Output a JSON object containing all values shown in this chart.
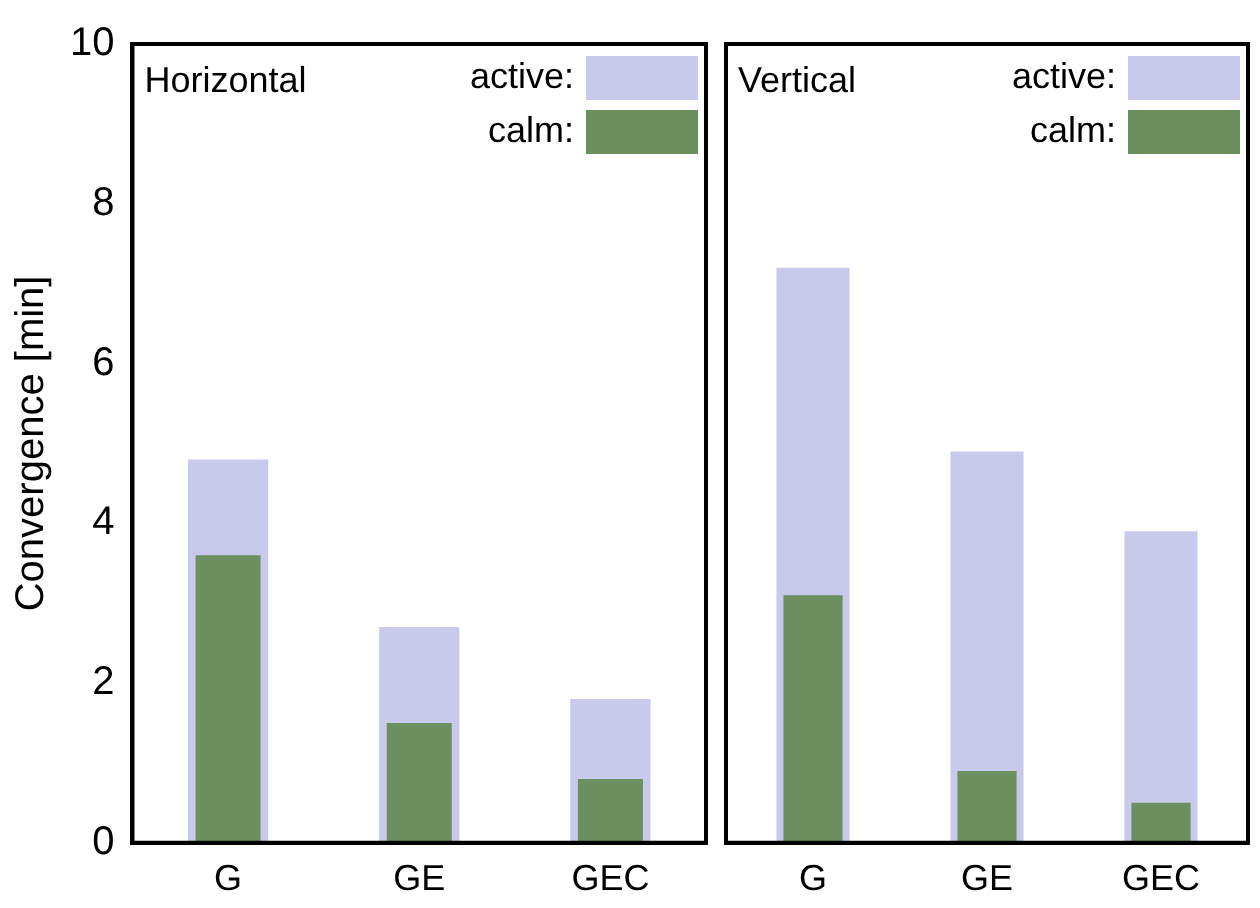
{
  "chart_data": [
    {
      "type": "bar",
      "title": "Horizontal",
      "ylabel": "Convergence [min]",
      "categories": [
        "G",
        "GE",
        "GEC"
      ],
      "ylim": [
        0,
        10
      ],
      "yticks": [
        0,
        2,
        4,
        6,
        8,
        10
      ],
      "legend": "top right",
      "grid": false,
      "series": [
        {
          "name": "active:",
          "color": "#c9c9ec",
          "values": [
            4.8,
            2.7,
            1.8
          ]
        },
        {
          "name": "calm:",
          "color": "#6b8f5e",
          "values": [
            3.6,
            1.5,
            0.8
          ]
        }
      ]
    },
    {
      "type": "bar",
      "title": "Vertical",
      "categories": [
        "G",
        "GE",
        "GEC"
      ],
      "ylim": [
        0,
        10
      ],
      "yticks": [
        0,
        2,
        4,
        6,
        8,
        10
      ],
      "tick_labels": "x",
      "legend": "top right",
      "grid": false,
      "series": [
        {
          "name": "active:",
          "color": "#c9c9ec",
          "values": [
            7.2,
            4.9,
            3.9
          ]
        },
        {
          "name": "calm:",
          "color": "#6b8f5e",
          "values": [
            3.1,
            0.9,
            0.5
          ]
        }
      ]
    }
  ]
}
